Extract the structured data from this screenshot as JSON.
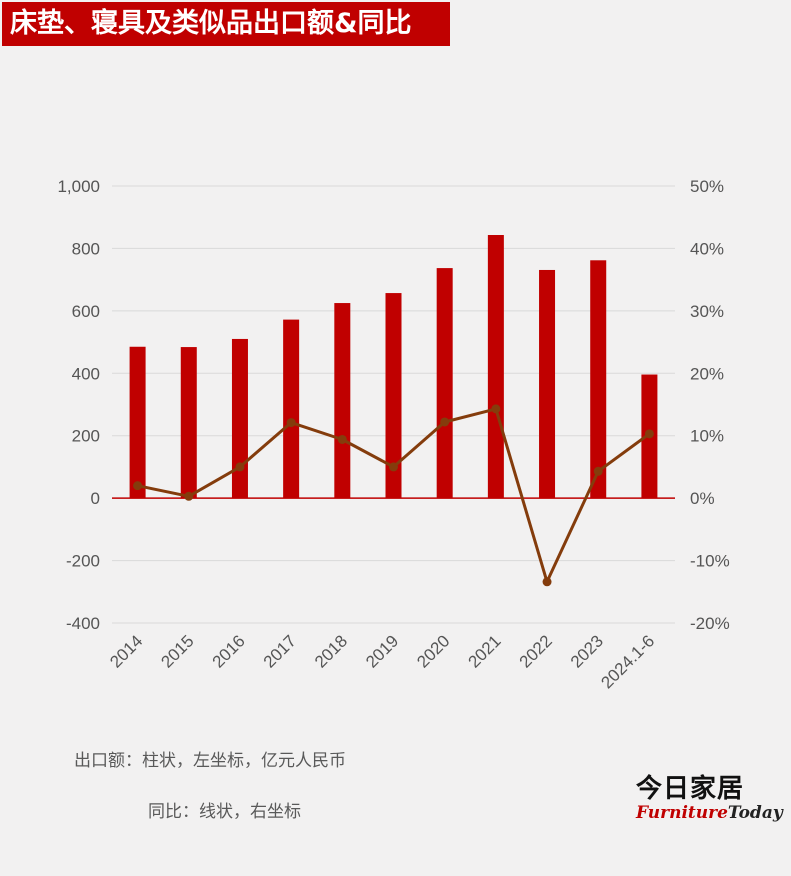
{
  "title": "床垫、寝具及类似品出口额&同比",
  "notes": {
    "bars": "出口额：柱状，左坐标，亿元人民币",
    "line": "同比：线状，右坐标"
  },
  "logo": {
    "cn": "今日家居",
    "en_part1": "Furniture",
    "en_part2": "Today"
  },
  "colors": {
    "background": "#f2f1f1",
    "bar": "#c00000",
    "line": "#843c0c",
    "title_bg": "#c00000",
    "grid": "#d9d9d9",
    "zero_line": "#c00000"
  },
  "chart_data": {
    "type": "bar",
    "categories": [
      "2014",
      "2015",
      "2016",
      "2017",
      "2018",
      "2019",
      "2020",
      "2021",
      "2022",
      "2023",
      "2024.1-6"
    ],
    "left_axis": {
      "ylim": [
        -400,
        1000
      ],
      "ticks": [
        -400,
        -200,
        0,
        200,
        400,
        600,
        800,
        1000
      ],
      "tick_labels": [
        "-400",
        "-200",
        "0",
        "200",
        "400",
        "600",
        "800",
        "1,000"
      ]
    },
    "right_axis": {
      "ylim": [
        -20,
        50
      ],
      "ticks": [
        -20,
        -10,
        0,
        10,
        20,
        30,
        40,
        50
      ],
      "tick_labels": [
        "-20%",
        "-10%",
        "0%",
        "10%",
        "20%",
        "30%",
        "40%",
        "50%"
      ]
    },
    "series": [
      {
        "type": "bar",
        "axis": "left",
        "values": [
          485,
          484,
          510,
          572,
          625,
          657,
          737,
          843,
          731,
          762,
          396
        ]
      },
      {
        "type": "line",
        "axis": "right",
        "values": [
          2.0,
          0.3,
          5.0,
          12.1,
          9.4,
          5.0,
          12.2,
          14.3,
          -13.4,
          4.3,
          10.3
        ]
      }
    ],
    "grid": true
  }
}
